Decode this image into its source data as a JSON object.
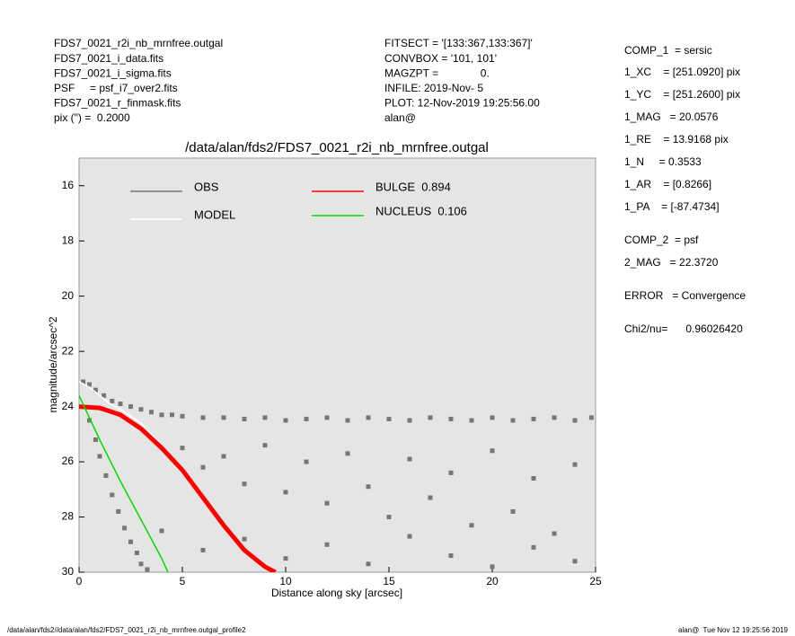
{
  "header": {
    "left": [
      "FDS7_0021_r2i_nb_mrnfree.outgal",
      "FDS7_0021_i_data.fits",
      "FDS7_0021_i_sigma.fits",
      "PSF     = psf_i7_over2.fits",
      "FDS7_0021_r_finmask.fits",
      "pix (\") =  0.2000"
    ],
    "middle": [
      "FITSECT = '[133:367,133:367]'",
      "CONVBOX = '101, 101'",
      "MAGZPT =              0.",
      "INFILE: 2019-Nov- 5",
      "PLOT: 12-Nov-2019 19:25:56.00",
      "alan@"
    ],
    "right": [
      "COMP_1  = sersic",
      "1_XC    = [251.0920] pix",
      "1_YC    = [251.2600] pix",
      "1_MAG   = 20.0576",
      "1_RE    = 13.9168 pix",
      "1_N     = 0.3533",
      "1_AR    = [0.8266]",
      "1_PA    = [-87.4734]",
      "COMP_2  = psf",
      "2_MAG   = 22.3720",
      "ERROR   = Convergence",
      "Chi2/nu=      0.96026420"
    ]
  },
  "footer": {
    "left": "/data/alan/fds2//data/alan/fds2/FDS7_0021_r2i_nb_mrnfree.outgal_profile2",
    "right": "alan@  Tue Nov 12 19:25:56 2019"
  },
  "chart_data": {
    "type": "scatter",
    "title": "/data/alan/fds2/FDS7_0021_r2i_nb_mrnfree.outgal",
    "xlabel": "Distance along sky [arcsec]",
    "ylabel": "magnitude/arcsec^2",
    "xlim": [
      0,
      25
    ],
    "xticks": [
      0,
      5,
      10,
      15,
      20,
      25
    ],
    "ylim": [
      15,
      30
    ],
    "yticks": [
      16,
      18,
      20,
      22,
      24,
      26,
      28,
      30
    ],
    "y_inverted": true,
    "background": "#e5e5e5",
    "series": [
      {
        "name": "OBS",
        "color": "#777777",
        "style": "points",
        "x": [
          0.2,
          0.5,
          0.8,
          1.2,
          1.6,
          2.0,
          2.5,
          3.0,
          3.5,
          4.0,
          4.5,
          5.0,
          6,
          7,
          8,
          9,
          10,
          11,
          12,
          13,
          14,
          15,
          16,
          17,
          18,
          19,
          20,
          21,
          22,
          23,
          24,
          24.8,
          0.5,
          0.8,
          1.0,
          1.3,
          1.6,
          1.9,
          2.2,
          2.5,
          2.8,
          3.0,
          3.3,
          5,
          6,
          7,
          8,
          9,
          10,
          11,
          12,
          13,
          14,
          15,
          16,
          17,
          18,
          19,
          20,
          21,
          22,
          23,
          24,
          4,
          6,
          8,
          10,
          12,
          14,
          16,
          18,
          20,
          22,
          24
        ],
        "values": [
          23.1,
          23.2,
          23.4,
          23.6,
          23.8,
          23.9,
          24.0,
          24.1,
          24.2,
          24.3,
          24.3,
          24.35,
          24.4,
          24.4,
          24.45,
          24.4,
          24.5,
          24.45,
          24.4,
          24.5,
          24.4,
          24.45,
          24.5,
          24.4,
          24.45,
          24.5,
          24.4,
          24.5,
          24.45,
          24.4,
          24.5,
          24.4,
          24.5,
          25.2,
          25.8,
          26.5,
          27.2,
          27.8,
          28.4,
          28.9,
          29.3,
          29.7,
          29.9,
          25.5,
          26.2,
          25.8,
          26.8,
          25.4,
          27.1,
          26.0,
          27.5,
          25.7,
          26.9,
          28.0,
          25.9,
          27.3,
          26.4,
          28.3,
          25.6,
          27.8,
          26.6,
          28.6,
          26.1,
          28.5,
          29.2,
          28.8,
          29.5,
          29.0,
          29.7,
          28.7,
          29.4,
          29.8,
          29.1,
          29.6
        ]
      },
      {
        "name": "MODEL",
        "color": "#ffffff",
        "style": "line",
        "x": [
          0,
          0.5,
          1,
          1.5,
          2,
          3,
          4,
          5,
          6,
          7,
          8,
          9
        ],
        "values": [
          23.1,
          23.3,
          23.6,
          23.9,
          24.1,
          24.6,
          25.4,
          26.4,
          27.4,
          28.4,
          29.3,
          29.8
        ]
      },
      {
        "name": "BULGE  0.894",
        "color": "#ff0000",
        "style": "line",
        "x": [
          0,
          1,
          2,
          3,
          4,
          5,
          6,
          7,
          8,
          9,
          9.5
        ],
        "values": [
          24.0,
          24.05,
          24.3,
          24.8,
          25.5,
          26.3,
          27.3,
          28.3,
          29.2,
          29.8,
          30.0
        ]
      },
      {
        "name": "NUCLEUS  0.106",
        "color": "#00dd00",
        "style": "line",
        "x": [
          0,
          1,
          2,
          3,
          4,
          4.3
        ],
        "values": [
          23.6,
          25.2,
          26.7,
          28.1,
          29.5,
          30.0
        ]
      }
    ]
  }
}
